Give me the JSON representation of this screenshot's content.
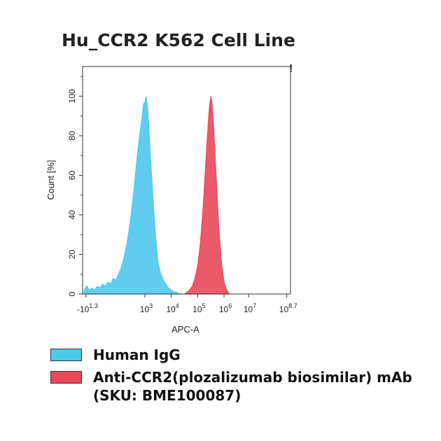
{
  "chart_data": {
    "type": "area",
    "title": "Hu_CCR2 K562 Cell Line",
    "annotation": "!",
    "x_label": "APC-A",
    "y_label": "Count [%]",
    "xlim": [
      0.64,
      8.52
    ],
    "ylim": [
      0,
      115
    ],
    "xticks": [
      {
        "value": 0.77,
        "label": "-10",
        "exponent": "1.3"
      },
      {
        "value": 3,
        "label": "10",
        "exponent": "3"
      },
      {
        "value": 4,
        "label": "10",
        "exponent": "4"
      },
      {
        "value": 5,
        "label": "10",
        "exponent": "5"
      },
      {
        "value": 6,
        "label": "10",
        "exponent": "6"
      },
      {
        "value": 6.93,
        "label": "10",
        "exponent": "7"
      },
      {
        "value": 8.38,
        "label": "10",
        "exponent": "8.7"
      }
    ],
    "yticks": [
      0,
      20,
      40,
      60,
      80,
      100
    ],
    "series": [
      {
        "name": "Human IgG",
        "color": "#4fc8ee",
        "x": [
          0.7,
          0.8,
          0.9,
          1.0,
          1.1,
          1.2,
          1.3,
          1.4,
          1.5,
          1.6,
          1.7,
          1.8,
          1.9,
          2.0,
          2.1,
          2.2,
          2.3,
          2.4,
          2.5,
          2.6,
          2.7,
          2.8,
          2.9,
          2.95,
          3.0,
          3.05,
          3.1,
          3.15,
          3.2,
          3.3,
          3.4,
          3.5,
          3.6,
          3.7,
          3.8,
          3.9,
          4.0,
          4.1,
          4.2,
          4.3,
          4.4
        ],
        "values": [
          2,
          4,
          2,
          3,
          2,
          4,
          3,
          5,
          4,
          6,
          5,
          8,
          7,
          10,
          13,
          18,
          24,
          32,
          42,
          55,
          68,
          80,
          90,
          96,
          97,
          100,
          94,
          85,
          72,
          50,
          30,
          16,
          10,
          7,
          5,
          3,
          2,
          1,
          1,
          0,
          0
        ]
      },
      {
        "name": "Anti-CCR2(plozalizumab biosimilar) mAb (SKU: BME100087)",
        "color": "#e8485a",
        "x": [
          4.5,
          4.6,
          4.7,
          4.8,
          4.9,
          5.0,
          5.1,
          5.2,
          5.3,
          5.4,
          5.45,
          5.5,
          5.55,
          5.6,
          5.7,
          5.8,
          5.9,
          6.0,
          6.1,
          6.2
        ],
        "values": [
          0,
          1,
          2,
          4,
          8,
          14,
          25,
          42,
          64,
          86,
          95,
          100,
          96,
          86,
          60,
          34,
          16,
          6,
          2,
          0
        ]
      }
    ]
  }
}
